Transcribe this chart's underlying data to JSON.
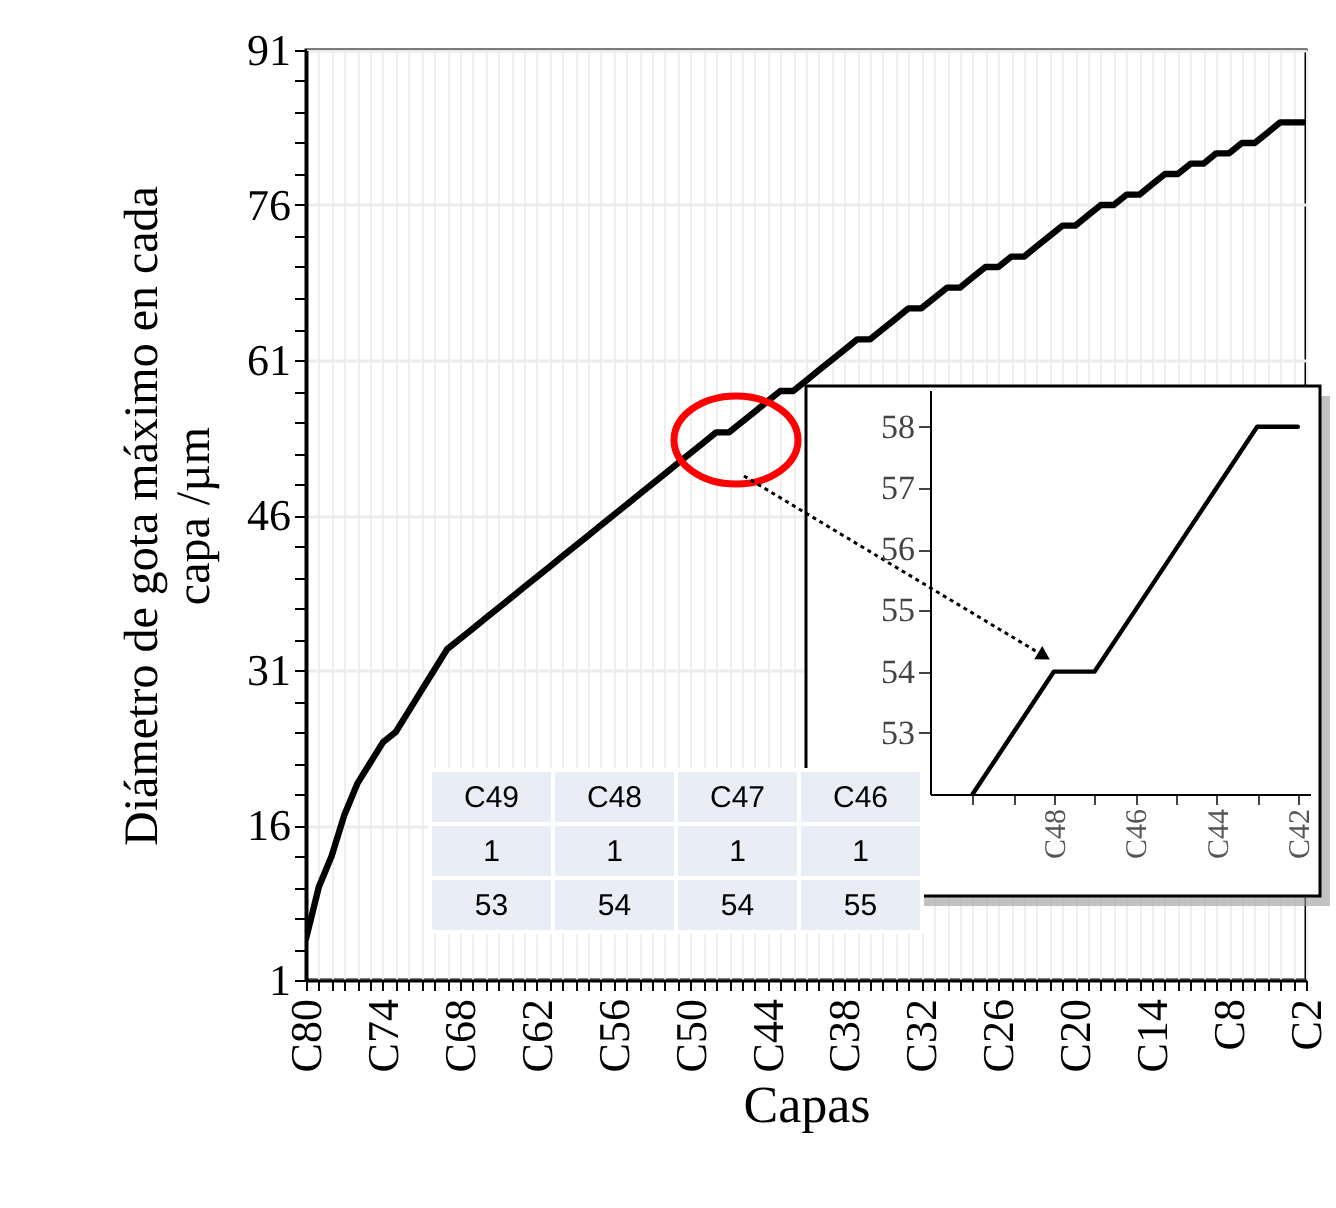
{
  "chart_data": [
    {
      "type": "line",
      "xlabel": "Capas",
      "ylabel": "Diámetro de gota máximo en cada\ncapa /µm",
      "categories": [
        "C80",
        null,
        null,
        null,
        null,
        null,
        "C74",
        null,
        null,
        null,
        null,
        null,
        "C68",
        null,
        null,
        null,
        null,
        null,
        "C62",
        null,
        null,
        null,
        null,
        null,
        "C56",
        null,
        null,
        null,
        null,
        null,
        "C50",
        null,
        null,
        null,
        null,
        null,
        "C44",
        null,
        null,
        null,
        null,
        null,
        "C38",
        null,
        null,
        null,
        null,
        null,
        "C32",
        null,
        null,
        null,
        null,
        null,
        "C26",
        null,
        null,
        null,
        null,
        null,
        "C20",
        null,
        null,
        null,
        null,
        null,
        "C14",
        null,
        null,
        null,
        null,
        null,
        "C8",
        null,
        null,
        null,
        null,
        null,
        "C2"
      ],
      "values": [
        5,
        10,
        13,
        17,
        20,
        22,
        24,
        25,
        27,
        29,
        31,
        33,
        34,
        35,
        36,
        37,
        38,
        39,
        40,
        41,
        42,
        43,
        44,
        45,
        46,
        47,
        48,
        49,
        50,
        51,
        52,
        53,
        54,
        54,
        55,
        56,
        57,
        58,
        58,
        59,
        60,
        61,
        62,
        63,
        63,
        64,
        65,
        66,
        66,
        67,
        68,
        68,
        69,
        70,
        70,
        71,
        71,
        72,
        73,
        74,
        74,
        75,
        76,
        76,
        77,
        77,
        78,
        79,
        79,
        80,
        80,
        81,
        81,
        82,
        82,
        83,
        84,
        84,
        84
      ],
      "color": "#000000",
      "ylim": [
        1,
        91
      ],
      "yticks": [
        1,
        {
          "value": 4,
          "label": null
        },
        {
          "value": 7,
          "label": null
        },
        {
          "value": 10,
          "label": null
        },
        {
          "value": 13,
          "label": null
        },
        16,
        {
          "value": 19,
          "label": null
        },
        {
          "value": 22,
          "label": null
        },
        {
          "value": 25,
          "label": null
        },
        {
          "value": 28,
          "label": null
        },
        31,
        {
          "value": 34,
          "label": null
        },
        {
          "value": 37,
          "label": null
        },
        {
          "value": 40,
          "label": null
        },
        {
          "value": 43,
          "label": null
        },
        46,
        {
          "value": 49,
          "label": null
        },
        {
          "value": 52,
          "label": null
        },
        {
          "value": 55,
          "label": null
        },
        {
          "value": 58,
          "label": null
        },
        61,
        {
          "value": 64,
          "label": null
        },
        {
          "value": 67,
          "label": null
        },
        {
          "value": 70,
          "label": null
        },
        {
          "value": 73,
          "label": null
        },
        76,
        {
          "value": 79,
          "label": null
        },
        {
          "value": 82,
          "label": null
        },
        {
          "value": 85,
          "label": null
        },
        {
          "value": 88,
          "label": null
        },
        91
      ],
      "grid": true
    },
    {
      "type": "line",
      "categories": [
        null,
        null,
        "C48",
        null,
        "C46",
        null,
        "C44",
        null,
        "C42"
      ],
      "values": [
        52,
        53,
        54,
        54,
        55,
        56,
        57,
        58,
        58
      ],
      "color": "#000000",
      "ylim": [
        52,
        58.6
      ],
      "yticks": [
        53,
        54,
        55,
        56,
        57,
        58
      ]
    },
    {
      "type": "other",
      "categories": [
        "C49",
        "C48",
        "C47",
        "C46"
      ],
      "series": [
        {
          "values": [
            1,
            1,
            1,
            1
          ]
        },
        {
          "values": [
            53,
            54,
            54,
            55
          ]
        }
      ],
      "data_labels": true
    }
  ]
}
